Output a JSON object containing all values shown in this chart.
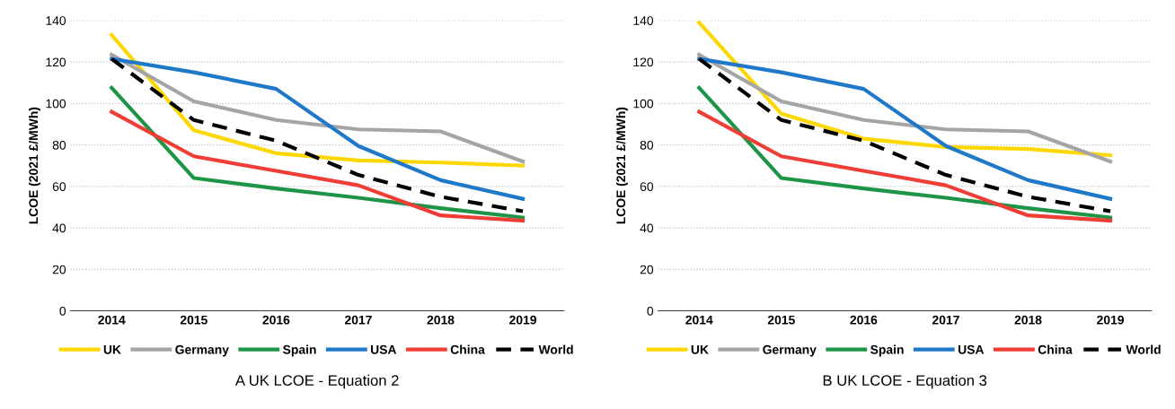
{
  "chart_data": [
    {
      "type": "line",
      "ylabel": "LCOE (2021 £/MWh)",
      "categories": [
        "2014",
        "2015",
        "2016",
        "2017",
        "2018",
        "2019"
      ],
      "ylim": [
        0,
        140
      ],
      "yticks": [
        0,
        20,
        40,
        60,
        80,
        100,
        120,
        140
      ],
      "grid": "y",
      "legend": "bottom",
      "annotations": [
        "A UK LCOE - Equation 2"
      ],
      "series": [
        {
          "name": "UK",
          "color": "#ffd700",
          "values": [
            133,
            87,
            76,
            72.5,
            71.5,
            70
          ]
        },
        {
          "name": "Germany",
          "color": "#a5a5a5",
          "values": [
            123.5,
            101,
            92,
            87.5,
            86.5,
            72
          ]
        },
        {
          "name": "Spain",
          "color": "#1e9447",
          "values": [
            107.5,
            64,
            59,
            54.5,
            49.5,
            45
          ]
        },
        {
          "name": "USA",
          "color": "#1f78c8",
          "values": [
            121.5,
            115,
            107,
            79.5,
            63,
            54
          ]
        },
        {
          "name": "China",
          "color": "#ef3e36",
          "values": [
            96,
            74.5,
            67.5,
            60.5,
            46,
            43.5
          ]
        },
        {
          "name": "World",
          "color": "#000000",
          "line_style": "dashed",
          "values": [
            121.5,
            92,
            82,
            65.5,
            55,
            48
          ]
        }
      ]
    },
    {
      "type": "line",
      "ylabel": "LCOE (2021 £/MWh)",
      "categories": [
        "2014",
        "2015",
        "2016",
        "2017",
        "2018",
        "2019"
      ],
      "ylim": [
        0,
        140
      ],
      "yticks": [
        0,
        20,
        40,
        60,
        80,
        100,
        120,
        140
      ],
      "grid": "y",
      "legend": "bottom",
      "annotations": [
        "B UK LCOE - Equation 3"
      ],
      "series": [
        {
          "name": "UK",
          "color": "#ffd700",
          "values": [
            139,
            95,
            83,
            79,
            78,
            75
          ]
        },
        {
          "name": "Germany",
          "color": "#a5a5a5",
          "values": [
            123.5,
            101,
            92,
            87.5,
            86.5,
            72
          ]
        },
        {
          "name": "Spain",
          "color": "#1e9447",
          "values": [
            107.5,
            64,
            59,
            54.5,
            49.5,
            45
          ]
        },
        {
          "name": "USA",
          "color": "#1f78c8",
          "values": [
            121.5,
            115,
            107,
            79.5,
            63,
            54
          ]
        },
        {
          "name": "China",
          "color": "#ef3e36",
          "values": [
            96,
            74.5,
            67.5,
            60.5,
            46,
            43.5
          ]
        },
        {
          "name": "World",
          "color": "#000000",
          "line_style": "dashed",
          "values": [
            121.5,
            92,
            82,
            65.5,
            55,
            48
          ]
        }
      ]
    }
  ]
}
